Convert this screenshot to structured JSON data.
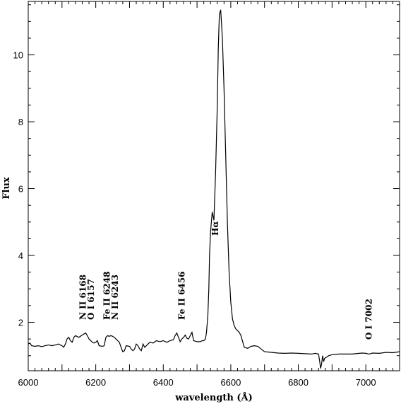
{
  "chart_data": {
    "type": "line",
    "xlabel": "wavelength (Å)",
    "ylabel": "Flux",
    "xlim": [
      6000,
      7100
    ],
    "ylim": [
      0.55,
      11.6
    ],
    "x_ticks": [
      6000,
      6200,
      6400,
      6600,
      6800,
      7000
    ],
    "y_ticks": [
      2,
      4,
      6,
      8,
      10
    ],
    "grid": false,
    "series": [
      {
        "x": [
          6000,
          6005,
          6010,
          6020,
          6030,
          6040,
          6050,
          6060,
          6070,
          6080,
          6090,
          6095,
          6100,
          6105,
          6110,
          6115,
          6120,
          6125,
          6130,
          6135,
          6140,
          6150,
          6160,
          6170,
          6175,
          6180,
          6185,
          6190,
          6195,
          6200,
          6205,
          6210,
          6220,
          6225,
          6230,
          6235,
          6240,
          6245,
          6250,
          6255,
          6260,
          6265,
          6270,
          6275,
          6280,
          6285,
          6290,
          6300,
          6305,
          6310,
          6315,
          6320,
          6325,
          6330,
          6335,
          6340,
          6345,
          6350,
          6360,
          6370,
          6380,
          6390,
          6400,
          6410,
          6420,
          6430,
          6435,
          6440,
          6445,
          6450,
          6455,
          6460,
          6465,
          6470,
          6475,
          6480,
          6485,
          6490,
          6500,
          6510,
          6515,
          6520,
          6525,
          6528,
          6532,
          6535,
          6537,
          6540,
          6545,
          6550,
          6555,
          6560,
          6563,
          6566,
          6570,
          6575,
          6580,
          6585,
          6590,
          6595,
          6600,
          6605,
          6610,
          6615,
          6620,
          6625,
          6630,
          6640,
          6650,
          6660,
          6670,
          6680,
          6690,
          6700,
          6720,
          6740,
          6760,
          6780,
          6800,
          6820,
          6840,
          6850,
          6860,
          6863,
          6866,
          6869,
          6872,
          6875,
          6878,
          6882,
          6886,
          6890,
          6900,
          6920,
          6940,
          6960,
          6980,
          6990,
          7000,
          7005,
          7010,
          7020,
          7040,
          7060,
          7080,
          7100
        ],
        "y": [
          1.35,
          1.38,
          1.3,
          1.28,
          1.3,
          1.27,
          1.3,
          1.32,
          1.3,
          1.32,
          1.35,
          1.32,
          1.3,
          1.25,
          1.35,
          1.5,
          1.55,
          1.45,
          1.4,
          1.55,
          1.6,
          1.55,
          1.62,
          1.68,
          1.6,
          1.5,
          1.45,
          1.4,
          1.38,
          1.4,
          1.45,
          1.3,
          1.28,
          1.3,
          1.55,
          1.6,
          1.58,
          1.6,
          1.58,
          1.55,
          1.5,
          1.45,
          1.4,
          1.25,
          1.12,
          1.15,
          1.3,
          1.28,
          1.2,
          1.15,
          1.2,
          1.35,
          1.3,
          1.2,
          1.15,
          1.35,
          1.25,
          1.3,
          1.4,
          1.38,
          1.45,
          1.42,
          1.45,
          1.4,
          1.45,
          1.48,
          1.6,
          1.68,
          1.55,
          1.42,
          1.5,
          1.55,
          1.62,
          1.52,
          1.5,
          1.6,
          1.7,
          1.45,
          1.42,
          1.42,
          1.45,
          1.45,
          1.5,
          1.7,
          2.2,
          3.0,
          4.0,
          4.7,
          5.3,
          5.05,
          6.5,
          8.5,
          10.2,
          11.2,
          11.35,
          10.5,
          9.0,
          7.0,
          5.0,
          3.5,
          2.6,
          2.1,
          1.9,
          1.8,
          1.75,
          1.7,
          1.6,
          1.25,
          1.22,
          1.28,
          1.3,
          1.28,
          1.2,
          1.12,
          1.1,
          1.08,
          1.07,
          1.08,
          1.07,
          1.06,
          1.05,
          1.07,
          1.05,
          0.85,
          0.62,
          0.75,
          1.0,
          0.82,
          0.92,
          0.95,
          0.97,
          1.0,
          1.03,
          1.05,
          1.05,
          1.05,
          1.07,
          1.08,
          1.07,
          1.06,
          1.05,
          1.08,
          1.07,
          1.1,
          1.09,
          1.12
        ]
      }
    ],
    "annotations": [
      {
        "text": "N II 6168",
        "x": 6170
      },
      {
        "text": "O I 6157",
        "x": 6195
      },
      {
        "text": "Fe II 6248",
        "x": 6242
      },
      {
        "text": "N II 6243",
        "x": 6266
      },
      {
        "text": "Fe II 6456",
        "x": 6463
      },
      {
        "text": "Hα",
        "x": 6563
      },
      {
        "text": "O I 7002",
        "x": 7017
      }
    ]
  }
}
